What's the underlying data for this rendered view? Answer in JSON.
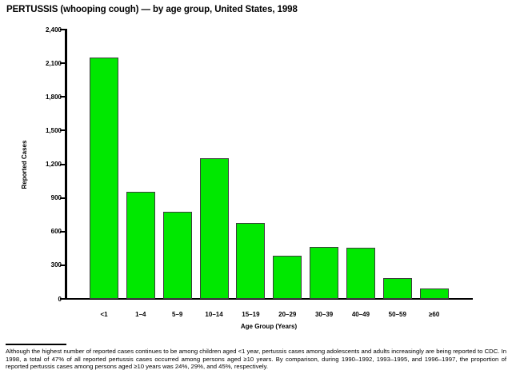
{
  "title": "PERTUSSIS (whooping cough) — by age group, United States, 1998",
  "chart_data": {
    "type": "bar",
    "title": "PERTUSSIS (whooping cough) — by age group, United States, 1998",
    "categories": [
      "<1",
      "1–4",
      "5–9",
      "10–14",
      "15–19",
      "20–29",
      "30–39",
      "40–49",
      "50–59",
      "≥60"
    ],
    "values": [
      2150,
      955,
      775,
      1250,
      680,
      385,
      465,
      455,
      185,
      90
    ],
    "xlabel": "Age Group (Years)",
    "ylabel": "Reported Cases",
    "ylim": [
      0,
      2400
    ],
    "yticks": [
      {
        "value": 0,
        "label": "0"
      },
      {
        "value": 300,
        "label": "300"
      },
      {
        "value": 600,
        "label": "600"
      },
      {
        "value": 900,
        "label": "900"
      },
      {
        "value": 1200,
        "label": "1,200"
      },
      {
        "value": 1500,
        "label": "1,500"
      },
      {
        "value": 1800,
        "label": "1,800"
      },
      {
        "value": 2100,
        "label": "2,100"
      },
      {
        "value": 2400,
        "label": "2,400"
      }
    ],
    "grid": false,
    "legend": null,
    "bar_color": "#00e800",
    "bar_border_color": "#3d3d3d",
    "axis_color": "#000000"
  },
  "footnote": "Although the highest number of reported cases continues to be among children aged <1 year, pertussis cases among adolescents and adults increasingly are being reported to CDC. In 1998, a total of 47% of all reported pertussis cases occurred among persons aged ≥10 years. By comparison, during 1990–1992, 1993–1995, and 1996–1997, the proportion of reported pertussis cases among persons aged ≥10 years was 24%, 29%, and 45%, respectively."
}
